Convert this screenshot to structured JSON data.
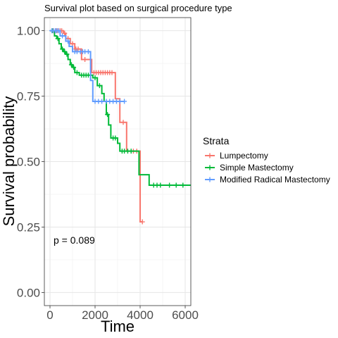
{
  "chart_data": {
    "type": "line",
    "title": "Survival plot based on surgical procedure type",
    "xlabel": "Time",
    "ylabel": "Survival probability",
    "xlim": [
      -250,
      6250
    ],
    "ylim": [
      -0.05,
      1.05
    ],
    "x_ticks": [
      0,
      2000,
      4000,
      6000
    ],
    "y_ticks": [
      0.0,
      0.25,
      0.5,
      0.75,
      1.0
    ],
    "x_tick_labels": [
      "0",
      "2000",
      "4000",
      "6000"
    ],
    "y_tick_labels": [
      "0.00",
      "0.25",
      "0.50",
      "0.75",
      "1.00"
    ],
    "grid": true,
    "annotation": "p = 0.089",
    "legend": {
      "title": "Strata",
      "placement": "right"
    },
    "series": [
      {
        "name": "Lumpectomy",
        "color": "#F8766D",
        "steps": [
          [
            0,
            1.0
          ],
          [
            600,
            0.99
          ],
          [
            700,
            0.97
          ],
          [
            900,
            0.95
          ],
          [
            1100,
            0.93
          ],
          [
            1400,
            0.89
          ],
          [
            1850,
            0.84
          ],
          [
            2900,
            0.74
          ],
          [
            3100,
            0.65
          ],
          [
            3400,
            0.54
          ],
          [
            4000,
            0.27
          ],
          [
            4100,
            0.27
          ]
        ],
        "censors": [
          [
            150,
            1.0
          ],
          [
            250,
            1.0
          ],
          [
            320,
            1.0
          ],
          [
            380,
            1.0
          ],
          [
            450,
            1.0
          ],
          [
            520,
            1.0
          ],
          [
            650,
            0.99
          ],
          [
            800,
            0.97
          ],
          [
            1000,
            0.95
          ],
          [
            1150,
            0.93
          ],
          [
            1250,
            0.93
          ],
          [
            1550,
            0.89
          ],
          [
            1950,
            0.84
          ],
          [
            2050,
            0.84
          ],
          [
            2150,
            0.84
          ],
          [
            2250,
            0.84
          ],
          [
            2350,
            0.84
          ],
          [
            2450,
            0.84
          ],
          [
            2550,
            0.84
          ],
          [
            2650,
            0.84
          ],
          [
            2750,
            0.84
          ],
          [
            3250,
            0.65
          ],
          [
            3700,
            0.54
          ],
          [
            3850,
            0.54
          ],
          [
            4100,
            0.27
          ]
        ]
      },
      {
        "name": "Simple Mastectomy",
        "color": "#00BA38",
        "steps": [
          [
            0,
            1.0
          ],
          [
            200,
            0.98
          ],
          [
            300,
            0.97
          ],
          [
            400,
            0.95
          ],
          [
            500,
            0.93
          ],
          [
            600,
            0.92
          ],
          [
            700,
            0.91
          ],
          [
            800,
            0.89
          ],
          [
            900,
            0.87
          ],
          [
            1000,
            0.86
          ],
          [
            1100,
            0.84
          ],
          [
            1300,
            0.83
          ],
          [
            1900,
            0.82
          ],
          [
            2100,
            0.79
          ],
          [
            2300,
            0.76
          ],
          [
            2400,
            0.73
          ],
          [
            2500,
            0.68
          ],
          [
            2600,
            0.64
          ],
          [
            2700,
            0.59
          ],
          [
            3000,
            0.57
          ],
          [
            3100,
            0.54
          ],
          [
            3850,
            0.54
          ],
          [
            3950,
            0.45
          ],
          [
            4400,
            0.41
          ],
          [
            6250,
            0.41
          ]
        ],
        "censors": [
          [
            100,
            1.0
          ],
          [
            350,
            0.97
          ],
          [
            550,
            0.93
          ],
          [
            650,
            0.92
          ],
          [
            750,
            0.91
          ],
          [
            950,
            0.87
          ],
          [
            1050,
            0.86
          ],
          [
            1200,
            0.84
          ],
          [
            1400,
            0.83
          ],
          [
            1500,
            0.83
          ],
          [
            1600,
            0.83
          ],
          [
            1700,
            0.83
          ],
          [
            2000,
            0.82
          ],
          [
            2200,
            0.79
          ],
          [
            2550,
            0.68
          ],
          [
            2800,
            0.59
          ],
          [
            2900,
            0.59
          ],
          [
            3200,
            0.54
          ],
          [
            3300,
            0.54
          ],
          [
            3450,
            0.54
          ],
          [
            3600,
            0.54
          ],
          [
            4600,
            0.41
          ],
          [
            4750,
            0.41
          ],
          [
            4900,
            0.41
          ],
          [
            5300,
            0.41
          ],
          [
            5600,
            0.41
          ],
          [
            5900,
            0.41
          ]
        ]
      },
      {
        "name": "Modified Radical Mastectomy",
        "color": "#619CFF",
        "steps": [
          [
            0,
            1.0
          ],
          [
            450,
            0.98
          ],
          [
            700,
            0.96
          ],
          [
            850,
            0.94
          ],
          [
            1000,
            0.92
          ],
          [
            1800,
            0.81
          ],
          [
            1900,
            0.73
          ],
          [
            3300,
            0.73
          ]
        ],
        "censors": [
          [
            80,
            1.0
          ],
          [
            160,
            1.0
          ],
          [
            240,
            1.0
          ],
          [
            300,
            1.0
          ],
          [
            380,
            1.0
          ],
          [
            550,
            0.98
          ],
          [
            800,
            0.96
          ],
          [
            1100,
            0.92
          ],
          [
            1200,
            0.92
          ],
          [
            1350,
            0.92
          ],
          [
            1450,
            0.92
          ],
          [
            1550,
            0.92
          ],
          [
            1700,
            0.92
          ],
          [
            2000,
            0.73
          ],
          [
            2150,
            0.73
          ],
          [
            2300,
            0.73
          ],
          [
            2500,
            0.73
          ],
          [
            2650,
            0.73
          ],
          [
            2800,
            0.73
          ],
          [
            2950,
            0.73
          ],
          [
            3100,
            0.73
          ],
          [
            3300,
            0.73
          ]
        ]
      }
    ]
  }
}
